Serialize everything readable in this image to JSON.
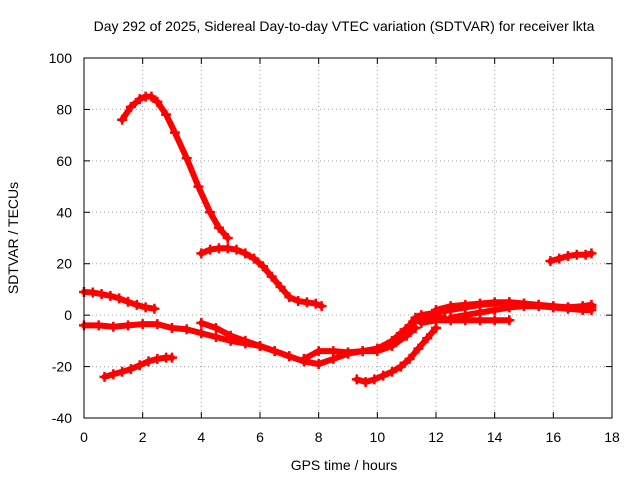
{
  "chart_data": {
    "type": "scatter",
    "title": "Day 292 of 2025, Sidereal Day-to-day VTEC variation (SDTVAR) for receiver lkta",
    "xlabel": "GPS time / hours",
    "ylabel": "SDTVAR / TECUs",
    "xlim": [
      0,
      18
    ],
    "ylim": [
      -40,
      100
    ],
    "xticks": [
      0,
      2,
      4,
      6,
      8,
      10,
      12,
      14,
      16,
      18
    ],
    "yticks": [
      -40,
      -20,
      0,
      20,
      40,
      60,
      80,
      100
    ],
    "grid": true,
    "marker_color": "#ff0000",
    "grid_color": "#a0a0a0",
    "series": [
      {
        "name": "arc-1",
        "x": [
          1.3,
          1.6,
          1.9,
          2.1,
          2.3,
          2.5,
          2.8,
          3.1,
          3.5,
          3.9,
          4.3,
          4.6,
          4.9
        ],
        "y": [
          76,
          81,
          84,
          85,
          85,
          83,
          78,
          71,
          61,
          50,
          40,
          34,
          30
        ]
      },
      {
        "name": "arc-2",
        "x": [
          4.0,
          4.3,
          4.6,
          4.9,
          5.2,
          5.5,
          5.8,
          6.1,
          6.4,
          6.7,
          7.0,
          7.3,
          7.6,
          7.9,
          8.1
        ],
        "y": [
          24,
          25.5,
          26,
          26,
          25.5,
          24,
          22,
          19,
          15,
          11,
          7,
          5.5,
          5,
          4.5,
          3.5
        ]
      },
      {
        "name": "arc-3",
        "x": [
          0.0,
          0.3,
          0.6,
          0.9,
          1.2,
          1.5,
          1.8,
          2.1,
          2.4
        ],
        "y": [
          9,
          8.8,
          8.2,
          7.5,
          6.5,
          5.2,
          4,
          3,
          2.5
        ]
      },
      {
        "name": "arc-4",
        "x": [
          0.0,
          0.5,
          1.0,
          1.5,
          2.0,
          2.5,
          3.0,
          3.5,
          4.0,
          4.5,
          5.0,
          5.5,
          6.0,
          6.5,
          7.0
        ],
        "y": [
          -4,
          -4,
          -4.5,
          -4,
          -3.5,
          -3.5,
          -5,
          -5.5,
          -7,
          -8.5,
          -10,
          -11,
          -12,
          -14,
          -16
        ]
      },
      {
        "name": "arc-5",
        "x": [
          4.0,
          4.5,
          5.0,
          5.5,
          6.0,
          6.5,
          7.0,
          7.5,
          8.0,
          8.5,
          9.0,
          9.5,
          10.0,
          10.5,
          11.0,
          11.3
        ],
        "y": [
          -3,
          -5,
          -8,
          -10,
          -12,
          -14,
          -16,
          -18,
          -19,
          -17,
          -15,
          -14,
          -14,
          -12,
          -8,
          -5
        ]
      },
      {
        "name": "arc-6",
        "x": [
          7.5,
          8.0,
          8.5,
          9.0,
          9.5,
          10.0,
          10.5,
          10.8,
          11.1,
          11.3
        ],
        "y": [
          -17,
          -14,
          -14,
          -14.5,
          -14,
          -13,
          -10,
          -7,
          -4,
          -1
        ]
      },
      {
        "name": "arc-7",
        "x": [
          0.7,
          1.0,
          1.3,
          1.6,
          1.9,
          2.2,
          2.5,
          2.8,
          3.0
        ],
        "y": [
          -24,
          -23,
          -22,
          -21,
          -19.5,
          -18,
          -17,
          -16.5,
          -16.5
        ]
      },
      {
        "name": "arc-8",
        "x": [
          9.3,
          9.6,
          9.9,
          10.2,
          10.5,
          10.8,
          11.1,
          11.4,
          11.7,
          12.0
        ],
        "y": [
          -25,
          -26,
          -25,
          -23.5,
          -22,
          -20,
          -17,
          -13,
          -9,
          -5
        ]
      },
      {
        "name": "arc-9",
        "x": [
          10.5,
          10.8,
          11.1,
          11.4,
          11.7,
          12.0,
          12.3
        ],
        "y": [
          -11,
          -8,
          -4,
          -1,
          -1,
          -1,
          -1
        ]
      },
      {
        "name": "arc-10",
        "x": [
          11.5,
          12.0,
          12.5,
          13.0,
          13.5,
          14.0,
          14.5
        ],
        "y": [
          -3,
          -2,
          -2,
          -2,
          -2,
          -2,
          -2
        ]
      },
      {
        "name": "arc-11",
        "x": [
          11.5,
          12.0,
          12.5,
          13.0,
          13.5,
          14.0,
          14.5,
          15.0,
          15.5,
          16.0,
          16.5,
          17.0,
          17.3
        ],
        "y": [
          0,
          1,
          2,
          3,
          4,
          4.5,
          5,
          4.5,
          4,
          3.5,
          3,
          3,
          3
        ]
      },
      {
        "name": "arc-12",
        "x": [
          12.0,
          12.5,
          13.0,
          13.5,
          14.0,
          14.5,
          15.0,
          15.5,
          16.0,
          16.5,
          17.0,
          17.3
        ],
        "y": [
          2,
          3.5,
          4,
          4.5,
          5,
          5,
          4.5,
          4,
          3,
          2.5,
          2,
          2
        ]
      },
      {
        "name": "arc-13",
        "x": [
          12.5,
          13.0,
          13.5,
          14.0,
          14.5,
          15.0,
          15.5,
          16.0,
          16.5,
          17.0,
          17.3
        ],
        "y": [
          -1,
          0,
          1,
          2,
          3,
          3.5,
          3.5,
          3,
          3,
          3.5,
          4
        ]
      },
      {
        "name": "arc-14",
        "x": [
          15.9,
          16.2,
          16.5,
          16.8,
          17.1,
          17.3
        ],
        "y": [
          21,
          22,
          23,
          23.5,
          23.5,
          24
        ]
      }
    ]
  }
}
